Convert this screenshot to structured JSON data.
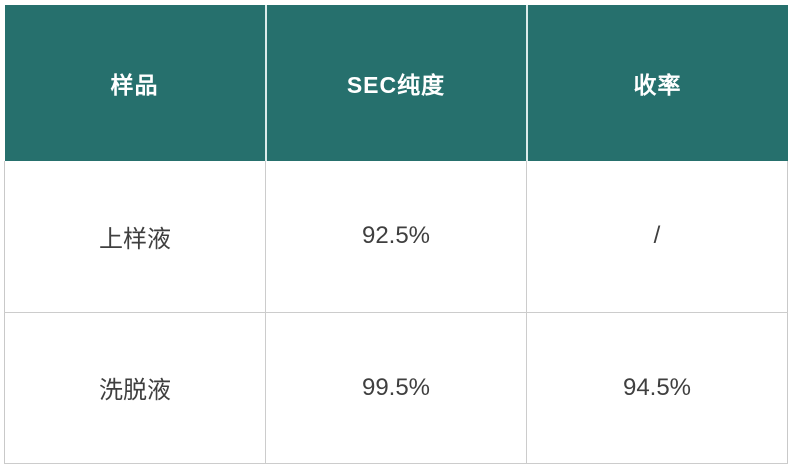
{
  "table": {
    "headers": [
      "样品",
      "SEC纯度",
      "收率"
    ],
    "rows": [
      [
        "上样液",
        "92.5%",
        "/"
      ],
      [
        "洗脱液",
        "99.5%",
        "94.5%"
      ]
    ]
  },
  "colors": {
    "header_bg": "#26706d",
    "header_text": "#ffffff",
    "body_text": "#3f3f3f",
    "grid_border": "#cccccc"
  },
  "chart_data": {
    "type": "table",
    "title": "",
    "columns": [
      "样品",
      "SEC纯度",
      "收率"
    ],
    "rows": [
      {
        "样品": "上样液",
        "SEC纯度": "92.5%",
        "收率": "/"
      },
      {
        "样品": "洗脱液",
        "SEC纯度": "99.5%",
        "收率": "94.5%"
      }
    ],
    "layout_hints": {
      "header_style": "teal background, white bold text",
      "body_style": "white background, gray 1px grid, centered text",
      "columns_equal_width": true
    }
  }
}
